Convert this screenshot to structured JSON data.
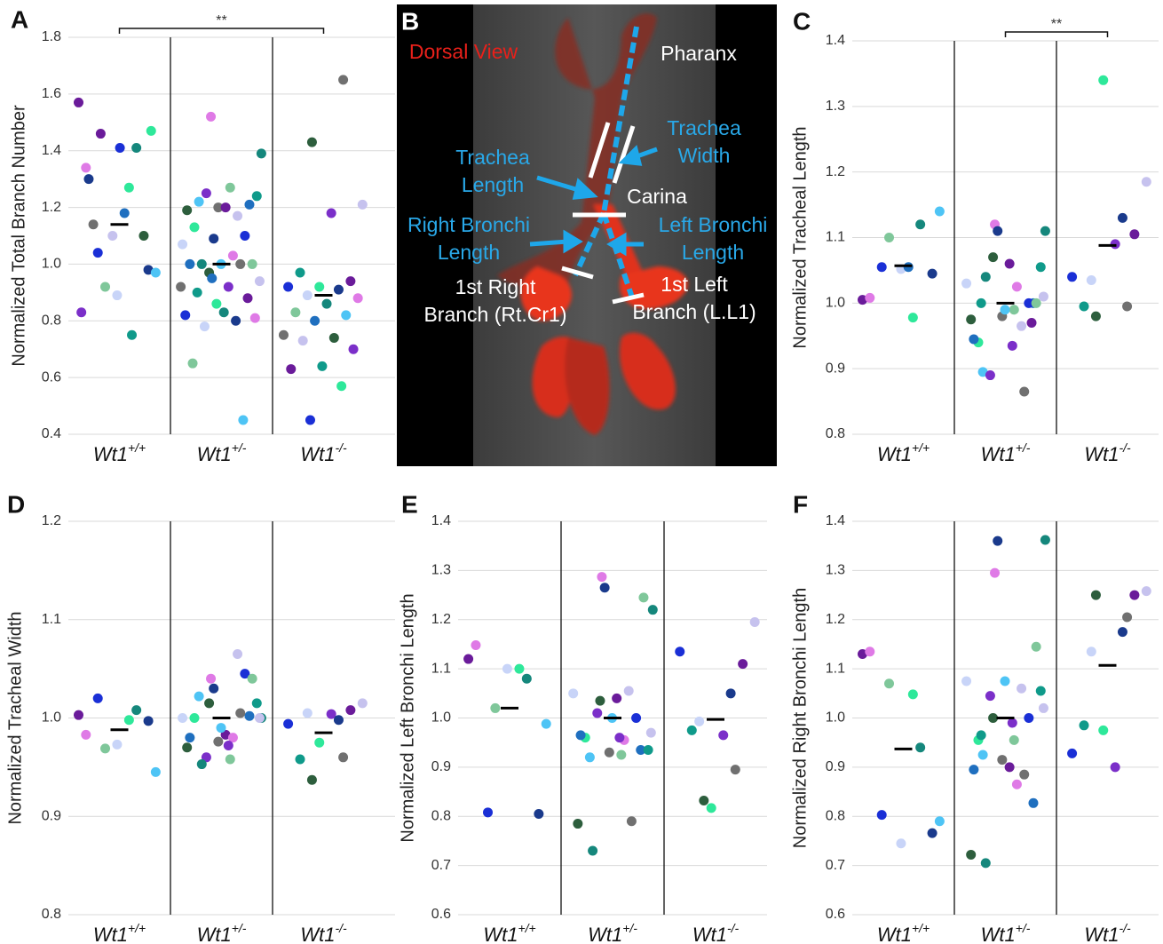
{
  "chart_data": [
    {
      "type": "strip",
      "panel": "A",
      "ylabel": "Normalized Total Branch Number",
      "categories": [
        "Wt1+/+",
        "Wt1+/-",
        "Wt1-/-"
      ],
      "groups": [
        {
          "values": [
            1.57,
            1.27,
            1.04,
            0.98,
            0.89,
            1.34,
            1.41,
            0.92,
            0.97,
            1.18,
            1.14,
            1.1,
            1.1,
            0.83,
            0.75,
            1.46,
            1.47,
            1.41,
            1.3
          ],
          "mean": 1.14
        },
        {
          "values": [
            1.52,
            1.39,
            1.27,
            1.22,
            1.21,
            1.2,
            1.19,
            1.17,
            1.25,
            1.24,
            1.2,
            1.13,
            1.1,
            1.09,
            1.07,
            1.03,
            1.0,
            1.0,
            1.0,
            1.0,
            1.0,
            0.97,
            0.94,
            0.92,
            0.9,
            0.88,
            0.86,
            0.82,
            0.8,
            0.78,
            0.81,
            0.83,
            0.65,
            0.45,
            0.95,
            0.92
          ],
          "mean": 1.0
        },
        {
          "values": [
            1.65,
            1.43,
            1.21,
            1.18,
            0.97,
            0.94,
            0.92,
            0.92,
            0.91,
            0.89,
            0.88,
            0.86,
            0.83,
            0.82,
            0.8,
            0.75,
            0.74,
            0.73,
            0.7,
            0.64,
            0.63,
            0.57,
            0.45
          ],
          "mean": 0.89
        }
      ],
      "ylim": [
        0.4,
        1.8
      ],
      "yticks": [
        0.4,
        0.6,
        0.8,
        {
          "value": 1,
          "label": "1.0"
        },
        1.2,
        1.4,
        1.6,
        1.8
      ],
      "grid": true,
      "significance": {
        "label": "**",
        "groups": [
          0,
          2
        ]
      }
    },
    {
      "type": "strip",
      "panel": "C",
      "ylabel": "Normalized Tracheal Length",
      "categories": [
        "Wt1+/+",
        "Wt1+/-",
        "Wt1-/-"
      ],
      "groups": [
        {
          "values": [
            1.005,
            0.978,
            1.055,
            1.045,
            1.052,
            1.008,
            1.12,
            1.1,
            1.14,
            1.055
          ],
          "mean": 1.057
        },
        {
          "values": [
            1.12,
            1.11,
            0.99,
            0.895,
            1.0,
            0.98,
            0.975,
            0.965,
            0.89,
            1.055,
            1.06,
            0.94,
            1.0,
            1.11,
            1.03,
            1.025,
            1.04,
            1.0,
            0.99,
            0.945,
            0.865,
            1.07,
            1.01,
            0.935,
            1.0,
            0.97
          ],
          "mean": 1.0
        },
        {
          "values": [
            0.995,
            0.98,
            1.185,
            1.09,
            0.995,
            1.105,
            1.34,
            1.04,
            1.13,
            1.035
          ],
          "mean": 1.088
        }
      ],
      "ylim": [
        0.8,
        1.4
      ],
      "yticks": [
        0.8,
        0.9,
        {
          "value": 1,
          "label": "1.0"
        },
        1.1,
        1.2,
        1.3,
        1.4
      ],
      "grid": true,
      "significance": {
        "label": "**",
        "groups": [
          1,
          2
        ]
      }
    },
    {
      "type": "strip",
      "panel": "D",
      "ylabel": "Normalized Tracheal Width",
      "categories": [
        "Wt1+/+",
        "Wt1+/-",
        "Wt1-/-"
      ],
      "groups": [
        {
          "values": [
            1.003,
            0.998,
            1.02,
            0.997,
            0.973,
            0.983,
            1.008,
            0.969,
            0.945
          ],
          "mean": 0.988
        },
        {
          "values": [
            1.04,
            1.0,
            0.958,
            1.022,
            1.002,
            0.976,
            0.97,
            1.065,
            0.96,
            1.015,
            0.983,
            1.0,
            1.045,
            1.03,
            1.0,
            0.98,
            0.953,
            1.04,
            0.99,
            0.98,
            1.005,
            1.015,
            1.0,
            0.972
          ],
          "mean": 1.0
        },
        {
          "values": [
            0.96,
            0.937,
            1.015,
            1.004,
            0.958,
            1.008,
            0.975,
            0.994,
            0.998,
            1.005
          ],
          "mean": 0.985
        }
      ],
      "ylim": [
        0.8,
        1.2
      ],
      "yticks": [
        0.8,
        0.9,
        {
          "value": 1,
          "label": "1.0"
        },
        1.1,
        1.2
      ],
      "grid": true
    },
    {
      "type": "strip",
      "panel": "E",
      "ylabel": "Normalized Left Bronchi Length",
      "categories": [
        "Wt1+/+",
        "Wt1+/-",
        "Wt1-/-"
      ],
      "groups": [
        {
          "values": [
            1.12,
            1.1,
            0.808,
            0.805,
            1.1,
            1.148,
            1.08,
            1.02,
            0.988
          ],
          "mean": 1.02
        },
        {
          "values": [
            1.287,
            1.22,
            0.925,
            0.92,
            0.935,
            0.93,
            0.785,
            1.055,
            1.01,
            0.935,
            1.04,
            0.96,
            1.0,
            1.265,
            1.05,
            0.955,
            0.73,
            1.245,
            1.0,
            0.965,
            0.79,
            1.035,
            0.97,
            0.96
          ],
          "mean": 1.0
        },
        {
          "values": [
            0.895,
            0.832,
            1.195,
            0.965,
            0.975,
            1.11,
            0.817,
            1.135,
            1.05,
            0.993
          ],
          "mean": 0.997
        }
      ],
      "ylim": [
        0.6,
        1.4
      ],
      "yticks": [
        0.6,
        0.7,
        0.8,
        0.9,
        {
          "value": 1,
          "label": "1.0"
        },
        1.1,
        1.2,
        1.3,
        1.4
      ],
      "grid": true
    },
    {
      "type": "strip",
      "panel": "F",
      "ylabel": "Normalized Right Bronchi Length",
      "categories": [
        "Wt1+/+",
        "Wt1+/-",
        "Wt1-/-"
      ],
      "groups": [
        {
          "values": [
            1.13,
            1.048,
            0.803,
            0.766,
            0.745,
            1.135,
            0.94,
            1.07,
            0.79
          ],
          "mean": 0.937
        },
        {
          "values": [
            1.295,
            1.362,
            0.955,
            0.925,
            0.827,
            0.915,
            0.722,
            1.06,
            1.045,
            1.055,
            0.9,
            0.955,
            1.0,
            1.36,
            1.075,
            0.865,
            0.705,
            1.145,
            1.075,
            0.895,
            0.885,
            1.0,
            1.02,
            0.99,
            0.965
          ],
          "mean": 1.0
        },
        {
          "values": [
            1.205,
            1.25,
            1.258,
            0.9,
            0.985,
            1.25,
            0.975,
            0.928,
            1.175,
            1.135
          ],
          "mean": 1.107
        }
      ],
      "ylim": [
        0.6,
        1.4
      ],
      "yticks": [
        0.6,
        0.7,
        0.8,
        0.9,
        {
          "value": 1,
          "label": "1.0"
        },
        1.1,
        1.2,
        1.3,
        1.4
      ],
      "grid": true
    }
  ],
  "palette": [
    "#6a1b9a",
    "#2ee89a",
    "#1a2fd6",
    "#1a3a8c",
    "#c8d4f8",
    "#df7ae6",
    "#15877c",
    "#7fc79a",
    "#4ec4f5",
    "#1f6fbf",
    "#707070",
    "#2d5e3d",
    "#c6c2ee",
    "#7b2fc9",
    "#0f9a8a"
  ],
  "image_panel": {
    "panel": "B",
    "labels": [
      {
        "lines": [
          "Dorsal View"
        ],
        "color": "#e8201a"
      },
      {
        "lines": [
          "Pharanx"
        ],
        "color": "#ffffff"
      },
      {
        "lines": [
          "Trachea",
          "Width"
        ],
        "color": "#29a8e8"
      },
      {
        "lines": [
          "Trachea",
          "Length"
        ],
        "color": "#29a8e8"
      },
      {
        "lines": [
          "Carina"
        ],
        "color": "#ffffff"
      },
      {
        "lines": [
          "Right Bronchi",
          "Length"
        ],
        "color": "#29a8e8"
      },
      {
        "lines": [
          "Left Bronchi",
          "Length"
        ],
        "color": "#29a8e8"
      },
      {
        "lines": [
          "1st Right",
          "Branch (Rt.Cr1)"
        ],
        "color": "#ffffff"
      },
      {
        "lines": [
          "1st Left",
          "Branch (L.L1)"
        ],
        "color": "#ffffff"
      }
    ]
  }
}
